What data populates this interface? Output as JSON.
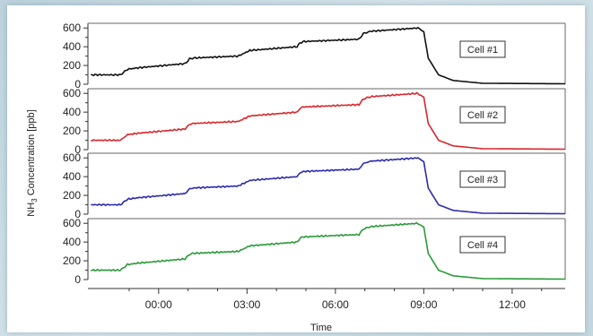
{
  "chart_data": {
    "type": "line",
    "title": "",
    "ylabel_main": "NH",
    "ylabel_sub": "3",
    "ylabel_rest": " Concentration [ppb]",
    "xlabel": "Time",
    "x_unit": "hours",
    "xlim": [
      -2.4,
      13.8
    ],
    "x_ticks": [
      0,
      3,
      6,
      9,
      12
    ],
    "x_tick_labels": [
      "00:00",
      "03:00",
      "06:00",
      "09:00",
      "12:00"
    ],
    "ylim": [
      0,
      650
    ],
    "y_ticks": [
      0,
      200,
      400,
      600
    ],
    "y_tick_labels": [
      "0",
      "200",
      "400",
      "600"
    ],
    "grid": false,
    "series": [
      {
        "name": "Cell #1",
        "color": "#111111",
        "x": [
          -2.3,
          -1.3,
          -1.05,
          -0.7,
          0.9,
          1.05,
          1.2,
          2.7,
          3.1,
          4.7,
          4.8,
          4.9,
          6.8,
          6.95,
          7.2,
          8.8,
          9.0,
          9.15,
          9.5,
          10.0,
          11.0,
          13.8
        ],
        "y": [
          100,
          100,
          160,
          175,
          220,
          270,
          280,
          300,
          360,
          400,
          440,
          455,
          480,
          540,
          565,
          600,
          560,
          280,
          100,
          40,
          10,
          5
        ]
      },
      {
        "name": "Cell #2",
        "color": "#d9262b",
        "x": [
          -2.3,
          -1.3,
          -1.05,
          -0.7,
          0.9,
          1.05,
          1.2,
          2.7,
          3.1,
          4.7,
          4.8,
          4.9,
          6.8,
          6.95,
          7.2,
          8.8,
          9.0,
          9.15,
          9.5,
          10.0,
          11.0,
          13.8
        ],
        "y": [
          100,
          100,
          160,
          175,
          220,
          270,
          280,
          300,
          360,
          400,
          440,
          455,
          480,
          540,
          565,
          600,
          560,
          280,
          100,
          40,
          10,
          5
        ]
      },
      {
        "name": "Cell #3",
        "color": "#2b2bb0",
        "x": [
          -2.3,
          -1.3,
          -1.05,
          -0.7,
          0.9,
          1.05,
          1.2,
          2.7,
          3.1,
          4.7,
          4.8,
          4.9,
          6.8,
          6.95,
          7.2,
          8.8,
          9.0,
          9.15,
          9.5,
          10.0,
          11.0,
          13.8
        ],
        "y": [
          100,
          100,
          160,
          175,
          220,
          270,
          280,
          300,
          360,
          400,
          440,
          455,
          480,
          540,
          565,
          600,
          560,
          280,
          100,
          40,
          10,
          5
        ]
      },
      {
        "name": "Cell #4",
        "color": "#2a9a38",
        "x": [
          -2.3,
          -1.3,
          -1.05,
          -0.7,
          0.9,
          1.05,
          1.2,
          2.7,
          3.1,
          4.7,
          4.8,
          4.9,
          6.8,
          6.95,
          7.2,
          8.8,
          9.0,
          9.15,
          9.5,
          10.0,
          11.0,
          13.8
        ],
        "y": [
          100,
          100,
          160,
          175,
          220,
          270,
          280,
          300,
          360,
          400,
          440,
          455,
          480,
          540,
          565,
          600,
          560,
          280,
          100,
          40,
          10,
          5
        ]
      }
    ]
  }
}
